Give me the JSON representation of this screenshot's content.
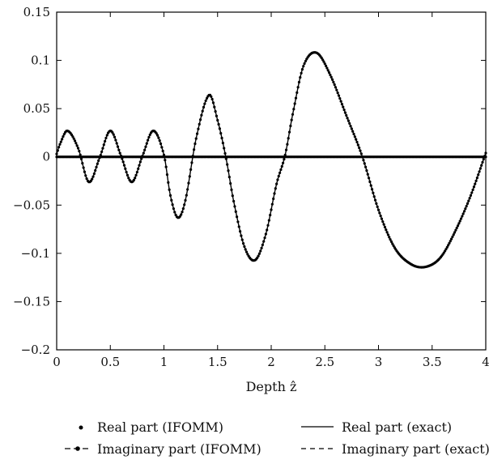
{
  "chart_data": {
    "type": "line",
    "title": "",
    "xlabel": "Depth ẑ",
    "ylabel": "",
    "xlim": [
      0,
      4
    ],
    "ylim": [
      -0.2,
      0.15
    ],
    "x_ticks": [
      0,
      0.5,
      1,
      1.5,
      2,
      2.5,
      3,
      3.5,
      4
    ],
    "y_ticks": [
      -0.2,
      -0.15,
      -0.1,
      -0.05,
      0,
      0.05,
      0.1,
      0.15
    ],
    "x_tick_labels": [
      "0",
      "0.5",
      "1",
      "1.5",
      "2",
      "2.5",
      "3",
      "3.5",
      "4"
    ],
    "y_tick_labels": [
      "−0.2",
      "−0.15",
      "−0.1",
      "−0.05",
      "0",
      "0.05",
      "0.1",
      "0.15"
    ],
    "grid": false,
    "legend_position": "bottom",
    "legend": [
      {
        "label": "Real part (IFOMM)",
        "style": "dot"
      },
      {
        "label": "Real part (exact)",
        "style": "solid"
      },
      {
        "label": "Imaginary part (IFOMM)",
        "style": "dash-dot-marker"
      },
      {
        "label": "Imaginary part (exact)",
        "style": "dashed"
      }
    ],
    "series": [
      {
        "name": "Real part (exact)",
        "style": "solid",
        "x": [
          0,
          0.1,
          0.2,
          0.3,
          0.4,
          0.5,
          0.6,
          0.7,
          0.8,
          0.9,
          1.0,
          1.1,
          1.2,
          1.3,
          1.4,
          1.5,
          1.6,
          1.7,
          1.8,
          1.9,
          2.0,
          2.1,
          2.2,
          2.3,
          2.4,
          2.5,
          2.6,
          2.7,
          2.8,
          2.9,
          3.0,
          3.1,
          3.2,
          3.3,
          3.4,
          3.5,
          3.6,
          3.7,
          3.8,
          3.9,
          4.0
        ],
        "y": [
          0,
          0,
          0,
          0,
          0,
          0,
          0,
          0,
          0,
          0,
          0,
          0,
          0,
          0,
          0,
          0,
          0,
          0,
          0,
          0,
          0,
          0,
          0,
          0,
          0,
          0,
          0,
          0,
          0,
          0,
          0,
          0,
          0,
          0,
          0,
          0,
          0,
          0,
          0,
          0,
          0
        ]
      },
      {
        "name": "Imaginary part (exact)",
        "style": "dashed",
        "x": [
          0,
          0.03,
          0.1,
          0.2,
          0.3,
          0.4,
          0.5,
          0.6,
          0.7,
          0.8,
          0.9,
          1.0,
          1.06,
          1.13,
          1.2,
          1.3,
          1.42,
          1.5,
          1.58,
          1.65,
          1.75,
          1.85,
          1.95,
          2.05,
          2.13,
          2.2,
          2.3,
          2.42,
          2.55,
          2.7,
          2.85,
          3.0,
          3.15,
          3.3,
          3.44,
          3.58,
          3.72,
          3.86,
          4.0
        ],
        "y": [
          0.003,
          0.013,
          0.027,
          0.009,
          -0.026,
          -0.001,
          0.027,
          0.001,
          -0.026,
          0.001,
          0.027,
          0.002,
          -0.04,
          -0.063,
          -0.045,
          0.019,
          0.064,
          0.038,
          -0.002,
          -0.046,
          -0.093,
          -0.107,
          -0.08,
          -0.028,
          0.002,
          0.044,
          0.094,
          0.108,
          0.085,
          0.043,
          0.0,
          -0.055,
          -0.094,
          -0.111,
          -0.114,
          -0.104,
          -0.076,
          -0.04,
          0.004
        ]
      }
    ]
  }
}
